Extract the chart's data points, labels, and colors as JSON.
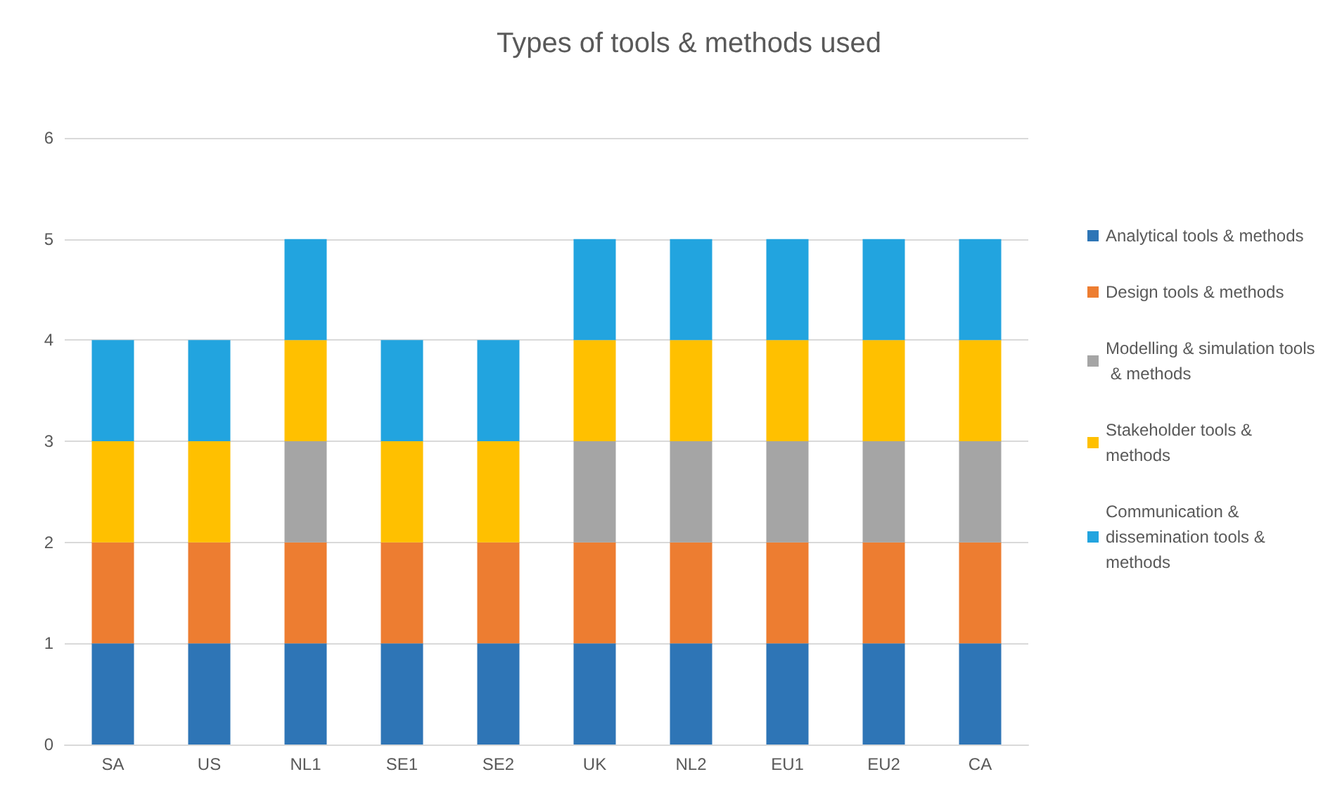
{
  "chart_data": {
    "type": "bar",
    "title": "Types of tools & methods used",
    "stacked": true,
    "categories": [
      "SA",
      "US",
      "NL1",
      "SE1",
      "SE2",
      "UK",
      "NL2",
      "EU1",
      "EU2",
      "CA"
    ],
    "series": [
      {
        "name": "Analytical tools & methods",
        "color": "#2e75b6",
        "values": [
          1,
          1,
          1,
          1,
          1,
          1,
          1,
          1,
          1,
          1
        ]
      },
      {
        "name": "Design tools & methods",
        "color": "#ed7d31",
        "values": [
          1,
          1,
          1,
          1,
          1,
          1,
          1,
          1,
          1,
          1
        ]
      },
      {
        "name": "Modelling & simulation tools & methods",
        "color": "#a5a5a5",
        "values": [
          0,
          0,
          1,
          0,
          0,
          1,
          1,
          1,
          1,
          1
        ]
      },
      {
        "name": "Stakeholder tools & methods",
        "color": "#ffc000",
        "values": [
          1,
          1,
          1,
          1,
          1,
          1,
          1,
          1,
          1,
          1
        ]
      },
      {
        "name": "Communication & dissemination tools & methods",
        "color": "#22a4df",
        "values": [
          1,
          1,
          1,
          1,
          1,
          1,
          1,
          1,
          1,
          1
        ]
      }
    ],
    "ylim": [
      0,
      6
    ],
    "yticks": [
      0,
      1,
      2,
      3,
      4,
      5,
      6
    ],
    "grid": "y",
    "legend": "right"
  }
}
